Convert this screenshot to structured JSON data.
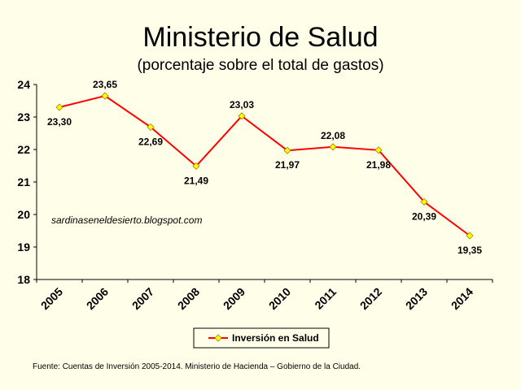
{
  "chart_data": {
    "type": "line",
    "title": "Ministerio de Salud",
    "subtitle": "(porcentaje sobre el total de gastos)",
    "categories": [
      "2005",
      "2006",
      "2007",
      "2008",
      "2009",
      "2010",
      "2011",
      "2012",
      "2013",
      "2014"
    ],
    "series": [
      {
        "name": "Inversión en Salud",
        "values": [
          23.3,
          23.65,
          22.69,
          21.49,
          23.03,
          21.97,
          22.08,
          21.98,
          20.39,
          19.35
        ],
        "labels": [
          "23,30",
          "23,65",
          "22,69",
          "21,49",
          "23,03",
          "21,97",
          "22,08",
          "21,98",
          "20,39",
          "19,35"
        ],
        "color": "#ff0000",
        "marker_color": "#ffff00"
      }
    ],
    "ylim": [
      18,
      24
    ],
    "yticks": [
      "18",
      "19",
      "20",
      "21",
      "22",
      "23",
      "24"
    ],
    "grid": false,
    "legend_position": "bottom",
    "annotation": "sardinaseneldesierto.blogspot.com"
  },
  "source_note": "Fuente: Cuentas de Inversión 2005-2014. Ministerio de Hacienda – Gobierno de la Ciudad."
}
